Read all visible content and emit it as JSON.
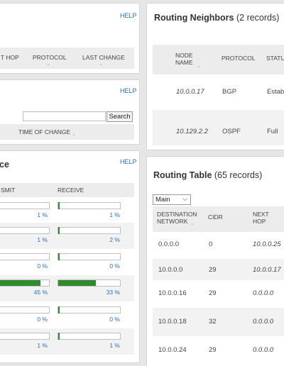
{
  "panel1": {
    "help": "HELP",
    "columns": [
      "T HOP",
      "PROTOCOL",
      "LAST CHANGE"
    ]
  },
  "panel2": {
    "help": "HELP",
    "search_button": "Search",
    "search_value": "",
    "columns": [
      "TIME OF CHANGE"
    ]
  },
  "panel3": {
    "title_tail": "ce",
    "help": "HELP",
    "columns": [
      "SMIT",
      "RECEIVE"
    ],
    "rows": [
      {
        "transmit_pct": 1,
        "transmit_label": "1 %",
        "receive_pct": 1,
        "receive_label": "1 %"
      },
      {
        "transmit_pct": 1,
        "transmit_label": "1 %",
        "receive_pct": 2,
        "receive_label": "2 %"
      },
      {
        "transmit_pct": 0,
        "transmit_label": "0 %",
        "receive_pct": 0,
        "receive_label": "0 %"
      },
      {
        "transmit_pct": 45,
        "transmit_label": "45 %",
        "receive_pct": 33,
        "receive_label": "33 %"
      },
      {
        "transmit_pct": 0,
        "transmit_label": "0 %",
        "receive_pct": 0,
        "receive_label": "0 %"
      },
      {
        "transmit_pct": 1,
        "transmit_label": "1 %",
        "receive_pct": 1,
        "receive_label": "1 %"
      }
    ]
  },
  "neighbors": {
    "title": "Routing Neighbors",
    "count": "(2 records)",
    "columns": [
      "NODE NAME",
      "PROTOCOL",
      "STATU"
    ],
    "rows": [
      {
        "node": "10.0.0.17",
        "protocol": "BGP",
        "status": "Estab"
      },
      {
        "node": "10.129.2.2",
        "protocol": "OSPF",
        "status": "Full"
      }
    ]
  },
  "routing": {
    "title": "Routing Table",
    "count": "(65 records)",
    "select_value": "Main",
    "columns": [
      "DESTINATION NETWORK",
      "CIDR",
      "NEXT HOP"
    ],
    "rows": [
      {
        "dest": "0.0.0.0",
        "cidr": "0",
        "hop": "10.0.0.25"
      },
      {
        "dest": "10.0.0.0",
        "cidr": "29",
        "hop": "10.0.0.17"
      },
      {
        "dest": "10.0.0.16",
        "cidr": "29",
        "hop": "0.0.0.0"
      },
      {
        "dest": "10.0.0.18",
        "cidr": "32",
        "hop": "0.0.0.0"
      },
      {
        "dest": "10.0.0.24",
        "cidr": "29",
        "hop": "0.0.0.0"
      }
    ]
  }
}
